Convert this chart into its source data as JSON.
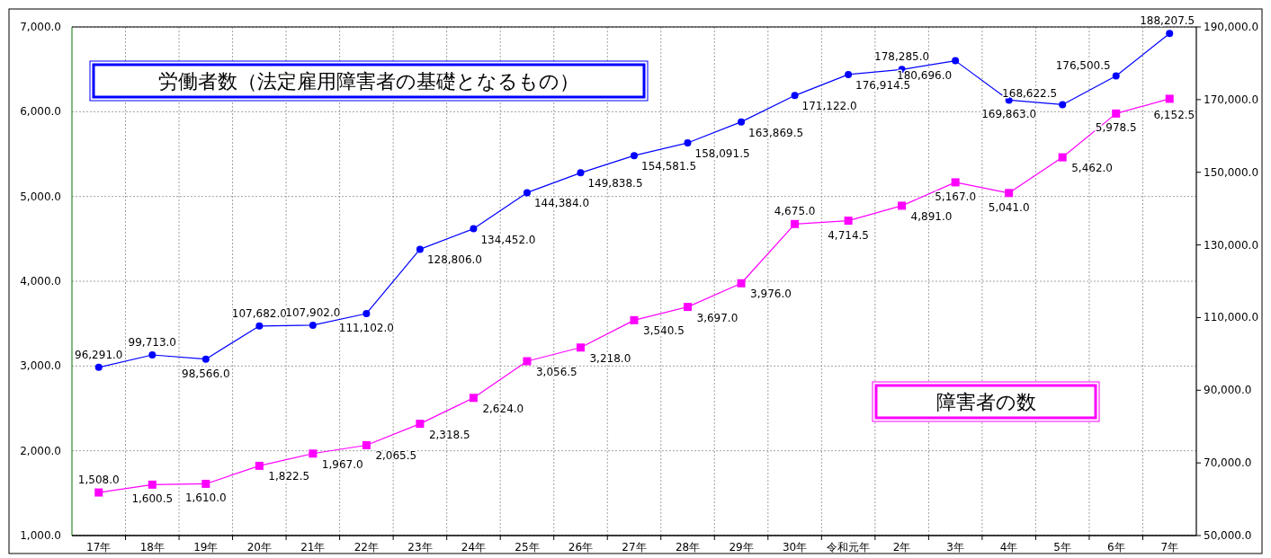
{
  "chart_data": {
    "type": "line",
    "categories": [
      "17年",
      "18年",
      "19年",
      "20年",
      "21年",
      "22年",
      "23年",
      "24年",
      "25年",
      "26年",
      "27年",
      "28年",
      "29年",
      "30年",
      "令和元年",
      "2年",
      "3年",
      "4年",
      "5年",
      "6年",
      "7年"
    ],
    "series": [
      {
        "name": "労働者数（法定雇用障害者の基礎となるもの）",
        "color": "#0000ff",
        "axis": "y2",
        "marker": "circle",
        "values": [
          96291,
          99713,
          98566,
          107682,
          107902,
          111102,
          128806,
          134452,
          144384,
          149838.5,
          154581.5,
          158091.5,
          163869.5,
          171122,
          176914.5,
          178285,
          180696,
          169863,
          168622.5,
          176500.5,
          188207.5
        ],
        "value_labels": [
          "96,291.0",
          "99,713.0",
          "98,566.0",
          "107,682.0",
          "107,902.0",
          "111,102.0",
          "128,806.0",
          "134,452.0",
          "144,384.0",
          "149,838.5",
          "154,581.5",
          "158,091.5",
          "163,869.5",
          "171,122.0",
          "176,914.5",
          "178,285.0",
          "180,696.0",
          "169,863.0",
          "168,622.5",
          "176,500.5",
          "188,207.5"
        ]
      },
      {
        "name": "障害者の数",
        "color": "#ff00ff",
        "marker": "square",
        "values": [
          1508,
          1600.5,
          1610,
          1822.5,
          1967,
          2065.5,
          2318.5,
          2624,
          3056.5,
          3218,
          3540.5,
          3697,
          3976,
          4675,
          4714.5,
          4891,
          5167,
          5041,
          5462,
          5978.5,
          6152.5
        ],
        "value_labels": [
          "1,508.0",
          "1,600.5",
          "1,610.0",
          "1,822.5",
          "1,967.0",
          "2,065.5",
          "2,318.5",
          "2,624.0",
          "3,056.5",
          "3,218.0",
          "3,540.5",
          "3,697.0",
          "3,976.0",
          "4,675.0",
          "4,714.5",
          "4,891.0",
          "5,167.0",
          "5,041.0",
          "5,462.0",
          "5,978.5",
          "6,152.5"
        ]
      }
    ],
    "ylim": [
      1000,
      7000
    ],
    "yticks": [
      {
        "value": 1000,
        "label": "1,000.0"
      },
      {
        "value": 2000,
        "label": "2,000.0"
      },
      {
        "value": 3000,
        "label": "3,000.0"
      },
      {
        "value": 4000,
        "label": "4,000.0"
      },
      {
        "value": 5000,
        "label": "5,000.0"
      },
      {
        "value": 6000,
        "label": "6,000.0"
      },
      {
        "value": 7000,
        "label": "7,000.0"
      }
    ],
    "y2lim": [
      50000,
      190000
    ],
    "y2ticks": [
      {
        "value": 50000,
        "label": "50,000.0"
      },
      {
        "value": 70000,
        "label": "70,000.0"
      },
      {
        "value": 90000,
        "label": "90,000.0"
      },
      {
        "value": 110000,
        "label": "110,000.0"
      },
      {
        "value": 130000,
        "label": "130,000.0"
      },
      {
        "value": 150000,
        "label": "150,000.0"
      },
      {
        "value": 170000,
        "label": "170,000.0"
      },
      {
        "value": 190000,
        "label": "190,000.0"
      }
    ],
    "grid": true
  }
}
